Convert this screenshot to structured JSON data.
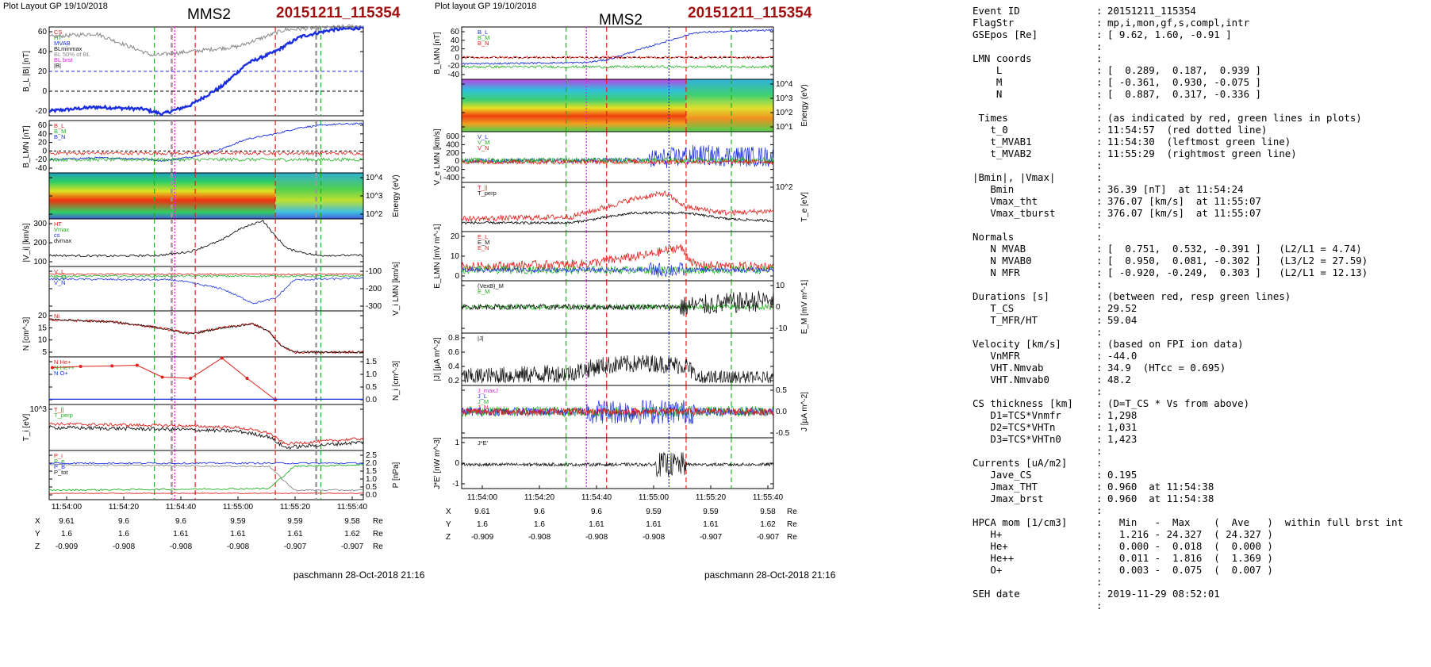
{
  "left_plot": {
    "header": "Plot Layout GP 19/10/2018",
    "spacecraft": "MMS2",
    "event": "20151211_115354",
    "footer": "paschmann 28-Oct-2018 21:16",
    "time_ticks": [
      "11:54:00",
      "11:54:20",
      "11:54:40",
      "11:55:00",
      "11:55:20",
      "11:55:40"
    ],
    "panels": [
      {
        "ylabel": "B_L |B| [nT]",
        "yticks": [
          "60",
          "40",
          "20",
          "0",
          "-20"
        ],
        "legend": [
          "CS",
          "HT",
          "MVAB",
          "BLminmax",
          "BL 50% of BL",
          "BL brst",
          "|B|"
        ]
      },
      {
        "ylabel": "B_LMN [nT]",
        "yticks": [
          "60",
          "40",
          "20",
          "0",
          "-20",
          "-40"
        ],
        "legend": [
          "B_L",
          "B_M",
          "B_N"
        ]
      },
      {
        "ylabel": "Energy (eV)",
        "yticks": [
          "10^4",
          "10^3",
          "10^2"
        ]
      },
      {
        "ylabel": "|V_i| [km/s]",
        "yticks": [
          "300",
          "200",
          "100"
        ],
        "legend": [
          "HT",
          "Vmax",
          "cs",
          "dvmax"
        ]
      },
      {
        "ylabel": "V_i LMN [km/s]",
        "yticks": [
          "-100",
          "-200",
          "-300"
        ],
        "legend": [
          "V_L",
          "V_M",
          "V_N"
        ]
      },
      {
        "ylabel": "N [cm^-3]",
        "yticks": [
          "20",
          "15",
          "10",
          "5"
        ],
        "legend": [
          "Ni"
        ]
      },
      {
        "ylabel": "N_i [cm^-3]",
        "yticks": [
          "1.5",
          "1.0",
          "0.5",
          "0.0"
        ],
        "legend": [
          "N He+",
          "N He++",
          "N O+"
        ]
      },
      {
        "ylabel": "T_i [eV]",
        "yticks": [
          "10^3"
        ],
        "legend": [
          "T_||",
          "T_perp"
        ]
      },
      {
        "ylabel": "P [nPa]",
        "yticks": [
          "2.5",
          "2.0",
          "1.5",
          "1.0",
          "0.5",
          "0.0"
        ],
        "legend": [
          "P_i",
          "P_e",
          "P_B",
          "P_tot"
        ]
      }
    ],
    "position_rows": [
      {
        "label": "X",
        "values": [
          "9.61",
          "9.6",
          "9.6",
          "9.59",
          "9.59",
          "9.58"
        ],
        "unit": "Re"
      },
      {
        "label": "Y",
        "values": [
          "1.6",
          "1.6",
          "1.61",
          "1.61",
          "1.61",
          "1.62"
        ],
        "unit": "Re"
      },
      {
        "label": "Z",
        "values": [
          "-0.909",
          "-0.908",
          "-0.908",
          "-0.908",
          "-0.907",
          "-0.907"
        ],
        "unit": "Re"
      }
    ]
  },
  "right_plot": {
    "header": "Plot layout GP 19/10/2018",
    "spacecraft": "MMS2",
    "event": "20151211_115354",
    "footer": "paschmann 28-Oct-2018 21:16",
    "time_ticks": [
      "11:54:00",
      "11:54:20",
      "11:54:40",
      "11:55:00",
      "11:55:20",
      "11:55:40"
    ],
    "panels": [
      {
        "ylabel": "B_LMN [nT]",
        "yticks": [
          "60",
          "40",
          "20",
          "0",
          "-20",
          "-40"
        ],
        "legend": [
          "B_L",
          "B_M",
          "B_N"
        ]
      },
      {
        "ylabel": "Energy (eV)",
        "yticks": [
          "10^4",
          "10^3",
          "10^2",
          "10^1"
        ]
      },
      {
        "ylabel": "V_e LMN [km/s]",
        "yticks": [
          "600",
          "400",
          "200",
          "0",
          "-200",
          "-400"
        ],
        "legend": [
          "V_L",
          "V_M",
          "V_N"
        ]
      },
      {
        "ylabel": "T_e [eV]",
        "yticks": [
          "10^2"
        ],
        "legend": [
          "T_||",
          "T_perp"
        ]
      },
      {
        "ylabel": "E_LMN [mV m^-1]",
        "yticks": [
          "20",
          "10",
          "0"
        ],
        "legend": [
          "E_L",
          "E_M",
          "E_N"
        ]
      },
      {
        "ylabel": "E_M [mV m^-1]",
        "yticks": [
          "10",
          "0",
          "-10"
        ],
        "legend": [
          "(VexB)_M",
          "E_M"
        ]
      },
      {
        "ylabel": "|J| [µA m^-2]",
        "yticks": [
          "0.8",
          "0.6",
          "0.4",
          "0.2"
        ],
        "legend": [
          "|J|"
        ]
      },
      {
        "ylabel": "J [µA m^-2]",
        "yticks": [
          "0.5",
          "0.0",
          "-0.5"
        ],
        "legend": [
          "J_maxJ",
          "J_L",
          "J_M",
          "J_N"
        ]
      },
      {
        "ylabel": "J*E' [nW m^-3]",
        "yticks": [
          "1",
          "0",
          "-1"
        ],
        "legend": [
          "J*E'"
        ]
      }
    ],
    "position_rows": [
      {
        "label": "X",
        "values": [
          "9.61",
          "9.6",
          "9.6",
          "9.59",
          "9.59",
          "9.58"
        ],
        "unit": "Re"
      },
      {
        "label": "Y",
        "values": [
          "1.6",
          "1.6",
          "1.61",
          "1.61",
          "1.61",
          "1.62"
        ],
        "unit": "Re"
      },
      {
        "label": "Z",
        "values": [
          "-0.909",
          "-0.908",
          "-0.908",
          "-0.908",
          "-0.907",
          "-0.907"
        ],
        "unit": "Re"
      }
    ]
  },
  "info_lines": [
    [
      "Event ID",
      ":",
      "20151211_115354"
    ],
    [
      "FlagStr",
      ":",
      "mp,i,mon,gf,s,compl,intr"
    ],
    [
      "GSEpos [Re]",
      ":",
      "[ 9.62, 1.60, -0.91 ]"
    ],
    [
      "",
      ":",
      ""
    ],
    [
      "LMN coords",
      ":",
      ""
    ],
    [
      "    L",
      ":",
      "[  0.289,  0.187,  0.939 ]"
    ],
    [
      "    M",
      ":",
      "[ -0.361,  0.930, -0.075 ]"
    ],
    [
      "    N",
      ":",
      "[  0.887,  0.317, -0.336 ]"
    ],
    [
      "",
      ":",
      ""
    ],
    [
      " Times",
      ":",
      "(as indicated by red, green lines in plots)"
    ],
    [
      "   t_0",
      ":",
      "11:54:57  (red dotted line)"
    ],
    [
      "   t_MVAB1",
      ":",
      "11:54:30  (leftmost green line)"
    ],
    [
      "   t_MVAB2",
      ":",
      "11:55:29  (rightmost green line)"
    ],
    [
      "",
      ":",
      ""
    ],
    [
      "|Bmin|, |Vmax|",
      ":",
      ""
    ],
    [
      "   Bmin",
      ":",
      "36.39 [nT]  at 11:54:24"
    ],
    [
      "   Vmax_tht",
      ":",
      "376.07 [km/s]  at 11:55:07"
    ],
    [
      "   Vmax_tburst",
      ":",
      "376.07 [km/s]  at 11:55:07"
    ],
    [
      "",
      ":",
      ""
    ],
    [
      "Normals",
      ":",
      ""
    ],
    [
      "   N MVAB",
      ":",
      "[  0.751,  0.532, -0.391 ]   (L2/L1 = 4.74)"
    ],
    [
      "   N MVAB0",
      ":",
      "[  0.950,  0.081, -0.302 ]   (L3/L2 = 27.59)"
    ],
    [
      "   N MFR",
      ":",
      "[ -0.920, -0.249,  0.303 ]   (L2/L1 = 12.13)"
    ],
    [
      "",
      ":",
      ""
    ],
    [
      "Durations [s]",
      ":",
      "(between red, resp green lines)"
    ],
    [
      "   T_CS",
      ":",
      "29.52"
    ],
    [
      "   T_MFR/HT",
      ":",
      "59.04"
    ],
    [
      "",
      ":",
      ""
    ],
    [
      "Velocity [km/s]",
      ":",
      "(based on FPI ion data)"
    ],
    [
      "   VnMFR",
      ":",
      "-44.0"
    ],
    [
      "   VHT.Nmvab",
      ":",
      "34.9  (HTcc = 0.695)"
    ],
    [
      "   VHT.Nmvab0",
      ":",
      "48.2"
    ],
    [
      "",
      ":",
      ""
    ],
    [
      "CS thickness [km]",
      ":",
      "(D=T_CS * Vs from above)"
    ],
    [
      "   D1=TCS*Vnmfr",
      ":",
      "1,298"
    ],
    [
      "   D2=TCS*VHTn",
      ":",
      "1,031"
    ],
    [
      "   D3=TCS*VHTn0",
      ":",
      "1,423"
    ],
    [
      "",
      ":",
      ""
    ],
    [
      "Currents [uA/m2]",
      ":",
      ""
    ],
    [
      "   Jave_CS",
      ":",
      "0.195"
    ],
    [
      "   Jmax_THT",
      ":",
      "0.960  at 11:54:38"
    ],
    [
      "   Jmax_brst",
      ":",
      "0.960  at 11:54:38"
    ],
    [
      "",
      ":",
      ""
    ],
    [
      "HPCA mom [1/cm3]",
      ":",
      "  Min   -  Max    (  Ave   )  within full brst int"
    ],
    [
      "   H+",
      ":",
      "  1.216 - 24.327  ( 24.327 )"
    ],
    [
      "   He+",
      ":",
      "  0.000 -  0.018  (  0.000 )"
    ],
    [
      "   He++",
      ":",
      "  0.011 -  1.816  (  1.369 )"
    ],
    [
      "   O+",
      ":",
      "  0.003 -  0.075  (  0.007 )"
    ],
    [
      "",
      ":",
      ""
    ],
    [
      "SEH date",
      ":",
      "2019-11-29 08:52:01"
    ],
    [
      "",
      ":",
      ""
    ]
  ],
  "colors": {
    "red": "#e0201a",
    "green": "#20b020",
    "blue": "#1a2ee0",
    "black": "#111111",
    "gray": "#888888",
    "magenta": "#e020e0",
    "dark_red": "#a01010"
  },
  "chart_data": [
    {
      "type": "line",
      "title": "MMS2 20151211_115354",
      "x_range": [
        "11:53:54",
        "11:55:48"
      ],
      "vertical_markers": {
        "t_0": "11:54:57",
        "t_MVAB1": "11:54:30",
        "t_MVAB2": "11:55:29"
      },
      "series": [
        {
          "name": "B_L",
          "x": [
            "11:53:54",
            "11:54:10",
            "11:54:20",
            "11:54:24",
            "11:54:35",
            "11:54:45",
            "11:54:55",
            "11:55:05",
            "11:55:15",
            "11:55:30",
            "11:55:48"
          ],
          "values": [
            -20,
            -16,
            -18,
            -22,
            -14,
            5,
            28,
            40,
            55,
            62,
            64
          ]
        },
        {
          "name": "|B|",
          "x": [
            "11:53:54",
            "11:54:10",
            "11:54:24",
            "11:54:40",
            "11:55:00",
            "11:55:20",
            "11:55:48"
          ],
          "values": [
            55,
            58,
            36,
            40,
            45,
            62,
            66
          ]
        },
        {
          "name": "|V_i|",
          "x": [
            "11:53:54",
            "11:54:20",
            "11:54:40",
            "11:54:55",
            "11:55:07",
            "11:55:15",
            "11:55:30",
            "11:55:48"
          ],
          "values": [
            100,
            95,
            130,
            250,
            376,
            150,
            100,
            100
          ]
        },
        {
          "name": "Ni",
          "x": [
            "11:53:54",
            "11:54:20",
            "11:54:40",
            "11:55:00",
            "11:55:10",
            "11:55:20",
            "11:55:48"
          ],
          "values": [
            18,
            17,
            11,
            16,
            8,
            2,
            2
          ]
        },
        {
          "name": "N He++",
          "x": [
            "11:53:54",
            "11:54:04",
            "11:54:14",
            "11:54:24",
            "11:54:34",
            "11:54:44",
            "11:54:54",
            "11:55:04",
            "11:55:14"
          ],
          "values": [
            1.35,
            1.4,
            1.42,
            1.45,
            0.95,
            0.9,
            1.75,
            0.9,
            0.0
          ]
        }
      ]
    },
    {
      "type": "line",
      "title": "MMS2 20151211_115354",
      "x_range": [
        "11:53:54",
        "11:55:48"
      ],
      "series": [
        {
          "name": "B_L",
          "x": [
            "11:53:54",
            "11:54:40",
            "11:55:00",
            "11:55:20",
            "11:55:48"
          ],
          "values": [
            -15,
            -10,
            30,
            60,
            64
          ]
        },
        {
          "name": "|J|",
          "x": [
            "11:53:54",
            "11:54:20",
            "11:54:38",
            "11:55:00",
            "11:55:14",
            "11:55:20",
            "11:55:48"
          ],
          "values": [
            0.1,
            0.15,
            0.96,
            0.5,
            0.6,
            0.1,
            0.08
          ]
        },
        {
          "name": "J*E'",
          "x": [
            "11:53:54",
            "11:54:40",
            "11:55:05",
            "11:55:12",
            "11:55:20",
            "11:55:48"
          ],
          "values": [
            0,
            0.2,
            0.5,
            1.5,
            0,
            0
          ]
        }
      ]
    }
  ]
}
